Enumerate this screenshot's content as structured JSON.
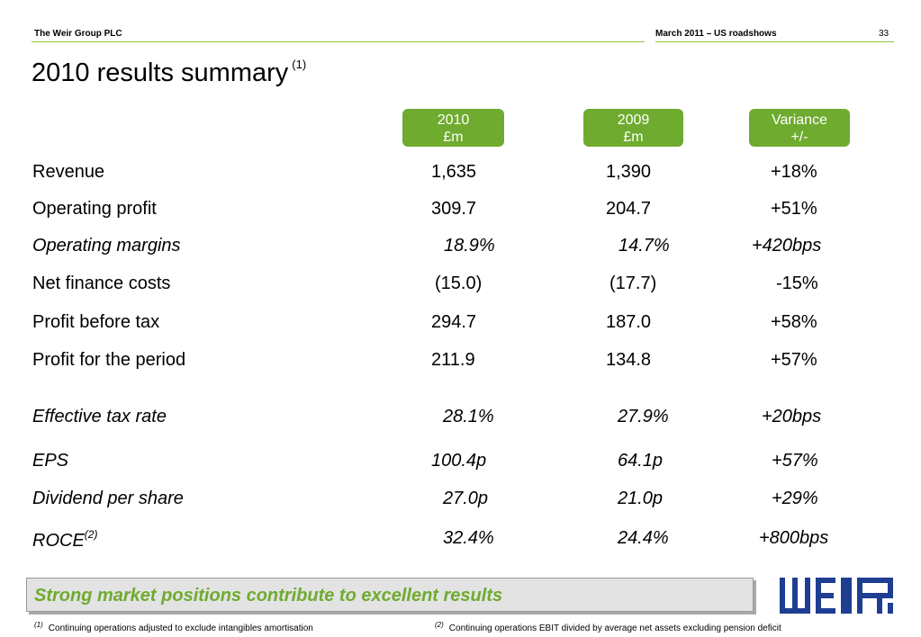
{
  "header": {
    "company": "The Weir Group PLC",
    "event": "March 2011 – US roadshows",
    "page_number": "33"
  },
  "title": {
    "text": "2010 results summary",
    "note": "(1)"
  },
  "columns": [
    {
      "line1": "2010",
      "line2": "£m"
    },
    {
      "line1": "2009",
      "line2": "£m"
    },
    {
      "line1": "Variance",
      "line2": "+/-"
    }
  ],
  "rows": [
    {
      "label": "Revenue",
      "note": "",
      "v2010": "1,635",
      "v2009": "1,390",
      "variance": "+18%"
    },
    {
      "label": "Operating profit",
      "note": "",
      "v2010": "309.7",
      "v2009": "204.7",
      "variance": "+51%"
    },
    {
      "label": "Operating margins",
      "note": "",
      "v2010": "18.9%",
      "v2009": "14.7%",
      "variance": "+420bps"
    },
    {
      "label": "Net finance costs",
      "note": "",
      "v2010": "(15.0)",
      "v2009": "(17.7)",
      "variance": "-15%"
    },
    {
      "label": "Profit before tax",
      "note": "",
      "v2010": "294.7",
      "v2009": "187.0",
      "variance": "+58%"
    },
    {
      "label": "Profit for the period",
      "note": "",
      "v2010": "211.9",
      "v2009": "134.8",
      "variance": "+57%"
    },
    {
      "label": "Effective tax rate",
      "note": "",
      "v2010": "28.1%",
      "v2009": "27.9%",
      "variance": "+20bps"
    },
    {
      "label": "EPS",
      "note": "",
      "v2010": "100.4p",
      "v2009": "64.1p",
      "variance": "+57%"
    },
    {
      "label": "Dividend per share",
      "note": "",
      "v2010": "27.0p",
      "v2009": "21.0p",
      "variance": "+29%"
    },
    {
      "label": "ROCE",
      "note": "(2)",
      "v2010": "32.4%",
      "v2009": "24.4%",
      "variance": "+800bps"
    }
  ],
  "banner": "Strong market positions contribute to excellent results",
  "footnotes": [
    {
      "mark": "(1)",
      "text": "Continuing operations adjusted to exclude intangibles amortisation"
    },
    {
      "mark": "(2)",
      "text": "Continuing operations EBIT divided by average net assets excluding pension deficit"
    }
  ],
  "colors": {
    "accent": "#6eab2f",
    "rule": "#8dc63f",
    "logo": "#1d3e91"
  },
  "logo": {
    "text": "WEIR"
  }
}
